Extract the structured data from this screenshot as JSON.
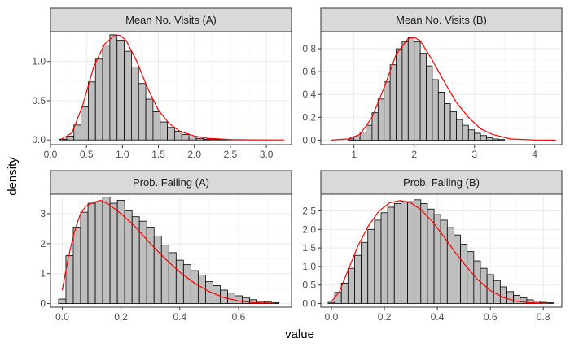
{
  "chart_data": {
    "type": "bar",
    "xlabel": "value",
    "ylabel": "density",
    "colors": {
      "bar_fill": "#bebebe",
      "bar_stroke": "#000000",
      "density_line": "#ff0000",
      "strip_fill": "#d9d9d9",
      "grid_major": "#ebebeb",
      "grid_minor": "#f5f5f5"
    },
    "panels": [
      {
        "title": "Mean No. Visits (A)",
        "xlim": [
          0.0,
          3.35
        ],
        "ylim": [
          -0.06,
          1.38
        ],
        "xticks": [
          0.0,
          0.5,
          1.0,
          1.5,
          2.0,
          2.5,
          3.0
        ],
        "xtick_labels": [
          "0.0",
          "0.5",
          "1.0",
          "1.5",
          "2.0",
          "2.5",
          "3.0"
        ],
        "yticks": [
          0.0,
          0.5,
          1.0
        ],
        "ytick_labels": [
          "0.0",
          "0.5",
          "1.0"
        ],
        "bin_start": 0.125,
        "bin_width": 0.1,
        "values": [
          0.01,
          0.05,
          0.19,
          0.42,
          0.74,
          1.03,
          1.21,
          1.34,
          1.27,
          1.13,
          0.93,
          0.72,
          0.52,
          0.36,
          0.23,
          0.16,
          0.11,
          0.07,
          0.04,
          0.02,
          0.01,
          0.005,
          0.003,
          0.002,
          0.001,
          0.001,
          0.0,
          0.0,
          0.0,
          0.0,
          0.0,
          0.0
        ],
        "density_x": [
          0.15,
          0.3,
          0.45,
          0.6,
          0.75,
          0.9,
          0.97,
          1.05,
          1.2,
          1.35,
          1.5,
          1.65,
          1.8,
          2.0,
          2.2,
          2.5,
          2.8,
          3.25
        ],
        "density_y": [
          0.01,
          0.09,
          0.45,
          0.93,
          1.22,
          1.34,
          1.33,
          1.27,
          1.0,
          0.66,
          0.38,
          0.21,
          0.11,
          0.05,
          0.02,
          0.005,
          0.001,
          0.0
        ]
      },
      {
        "title": "Mean No. Visits (B)",
        "xlim": [
          0.45,
          4.45
        ],
        "ylim": [
          -0.04,
          0.95
        ],
        "xticks": [
          1,
          2,
          3,
          4
        ],
        "xtick_labels": [
          "1",
          "2",
          "3",
          "4"
        ],
        "yticks": [
          0.0,
          0.2,
          0.4,
          0.6,
          0.8
        ],
        "ytick_labels": [
          "0.0",
          "0.2",
          "0.4",
          "0.6",
          "0.8"
        ],
        "bin_start": 0.6,
        "bin_width": 0.1,
        "values": [
          0.0,
          0.0,
          0.0,
          0.01,
          0.03,
          0.07,
          0.13,
          0.24,
          0.36,
          0.51,
          0.66,
          0.8,
          0.86,
          0.9,
          0.86,
          0.76,
          0.65,
          0.53,
          0.42,
          0.32,
          0.25,
          0.18,
          0.13,
          0.09,
          0.06,
          0.04,
          0.02,
          0.01,
          0.005,
          0.0,
          0.0,
          0.0,
          0.0,
          0.0,
          0.0,
          0.0,
          0.0,
          0.0
        ],
        "density_x": [
          0.62,
          0.9,
          1.1,
          1.3,
          1.5,
          1.7,
          1.9,
          2.0,
          2.1,
          2.3,
          2.5,
          2.7,
          2.9,
          3.1,
          3.3,
          3.6,
          4.0,
          4.35
        ],
        "density_y": [
          0.0,
          0.01,
          0.05,
          0.2,
          0.46,
          0.75,
          0.89,
          0.9,
          0.87,
          0.7,
          0.51,
          0.33,
          0.2,
          0.1,
          0.05,
          0.01,
          0.001,
          0.0
        ]
      },
      {
        "title": "Prob. Failing (A)",
        "xlim": [
          -0.04,
          0.78
        ],
        "ylim": [
          -0.12,
          3.65
        ],
        "xticks": [
          0.0,
          0.2,
          0.4,
          0.6
        ],
        "xtick_labels": [
          "0.0",
          "0.2",
          "0.4",
          "0.6"
        ],
        "yticks": [
          0,
          1,
          2,
          3
        ],
        "ytick_labels": [
          "0",
          "1",
          "2",
          "3"
        ],
        "bin_start": -0.0125,
        "bin_width": 0.025,
        "values": [
          0.15,
          1.6,
          2.55,
          3.05,
          3.35,
          3.4,
          3.55,
          3.35,
          3.45,
          3.1,
          2.9,
          2.75,
          2.55,
          2.25,
          1.95,
          1.7,
          1.45,
          1.3,
          1.1,
          0.95,
          0.73,
          0.6,
          0.45,
          0.35,
          0.26,
          0.2,
          0.13,
          0.07,
          0.05,
          0.03
        ],
        "density_x": [
          0.0,
          0.02,
          0.04,
          0.06,
          0.08,
          0.1,
          0.13,
          0.16,
          0.2,
          0.25,
          0.3,
          0.35,
          0.4,
          0.45,
          0.5,
          0.55,
          0.6,
          0.65,
          0.72
        ],
        "density_y": [
          0.45,
          1.5,
          2.35,
          2.95,
          3.25,
          3.35,
          3.45,
          3.3,
          3.0,
          2.55,
          2.0,
          1.5,
          1.05,
          0.68,
          0.4,
          0.2,
          0.09,
          0.03,
          0.01
        ]
      },
      {
        "title": "Prob. Failing (B)",
        "xlim": [
          -0.04,
          0.87
        ],
        "ylim": [
          -0.1,
          2.95
        ],
        "xticks": [
          0.0,
          0.2,
          0.4,
          0.6,
          0.8
        ],
        "xtick_labels": [
          "0.0",
          "0.2",
          "0.4",
          "0.6",
          "0.8"
        ],
        "yticks": [
          0.0,
          0.5,
          1.0,
          1.5,
          2.0,
          2.5
        ],
        "ytick_labels": [
          "0.0",
          "0.5",
          "1.0",
          "1.5",
          "2.0",
          "2.5"
        ],
        "bin_start": -0.0125,
        "bin_width": 0.025,
        "values": [
          0.03,
          0.3,
          0.55,
          0.95,
          1.3,
          1.65,
          2.0,
          2.25,
          2.45,
          2.6,
          2.7,
          2.75,
          2.75,
          2.8,
          2.7,
          2.55,
          2.4,
          2.25,
          2.05,
          1.85,
          1.6,
          1.4,
          1.15,
          0.95,
          0.78,
          0.62,
          0.45,
          0.32,
          0.22,
          0.15,
          0.1,
          0.06,
          0.03,
          0.02
        ],
        "density_x": [
          0.0,
          0.03,
          0.06,
          0.1,
          0.14,
          0.18,
          0.22,
          0.26,
          0.3,
          0.34,
          0.38,
          0.42,
          0.46,
          0.5,
          0.55,
          0.6,
          0.65,
          0.7,
          0.75,
          0.82
        ],
        "density_y": [
          0.05,
          0.32,
          0.85,
          1.55,
          2.1,
          2.5,
          2.72,
          2.78,
          2.72,
          2.52,
          2.22,
          1.85,
          1.45,
          1.08,
          0.66,
          0.35,
          0.16,
          0.06,
          0.02,
          0.0
        ]
      }
    ]
  }
}
